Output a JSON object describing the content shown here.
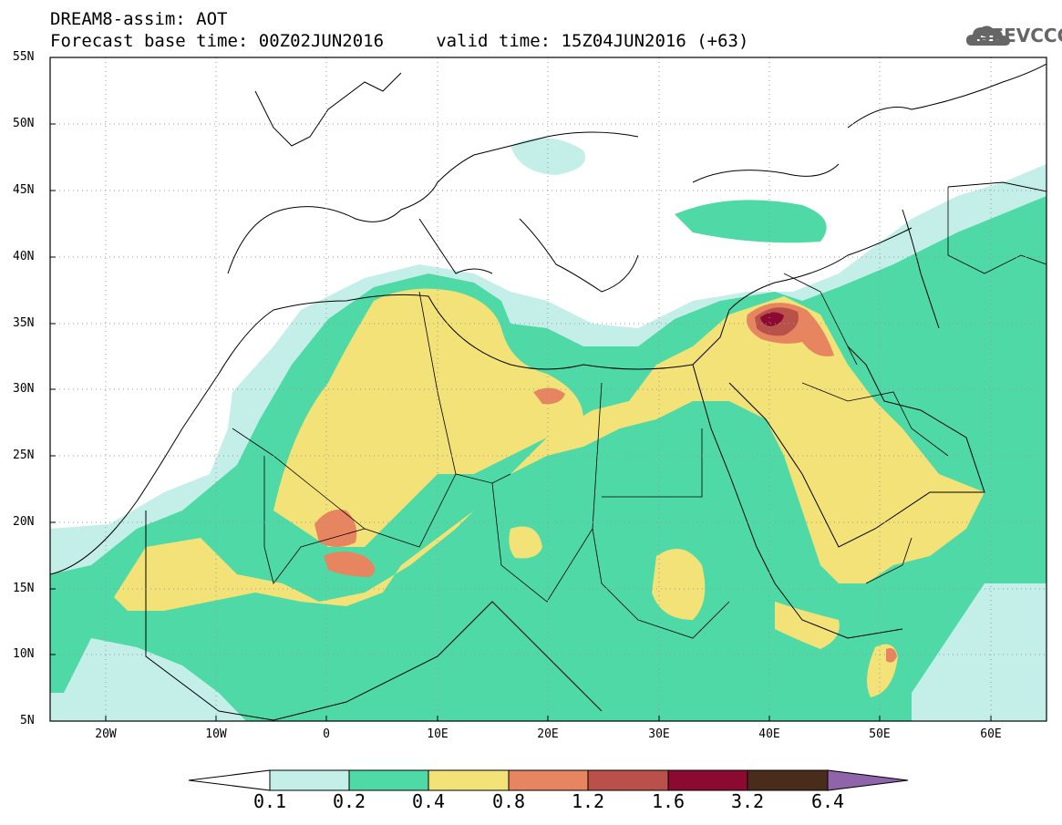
{
  "header": {
    "line1": "DREAM8-assim: AOT",
    "line2": "Forecast base time: 00Z02JUN2016     valid time: 15Z04JUN2016 (+63)"
  },
  "logo": {
    "text": "SEEVCCC",
    "icon": "cloud-icon"
  },
  "map": {
    "lat_labels": [
      "55N",
      "50N",
      "45N",
      "40N",
      "35N",
      "30N",
      "25N",
      "20N",
      "15N",
      "10N",
      "5N"
    ],
    "lon_labels": [
      "20W",
      "10W",
      "0",
      "10E",
      "20E",
      "30E",
      "40E",
      "50E",
      "60E"
    ],
    "lon_range": [
      -25,
      65
    ],
    "lat_range": [
      5,
      55
    ],
    "grid": "dotted"
  },
  "legend": {
    "labels": [
      "0.1",
      "0.2",
      "0.4",
      "0.8",
      "1.2",
      "1.6",
      "3.2",
      "6.4"
    ],
    "colors": [
      "#ffffff",
      "#c4efe8",
      "#4fd9a6",
      "#f2e277",
      "#e6855f",
      "#b9514a",
      "#8c0a32",
      "#4a2c1c",
      "#8f64aa"
    ]
  }
}
